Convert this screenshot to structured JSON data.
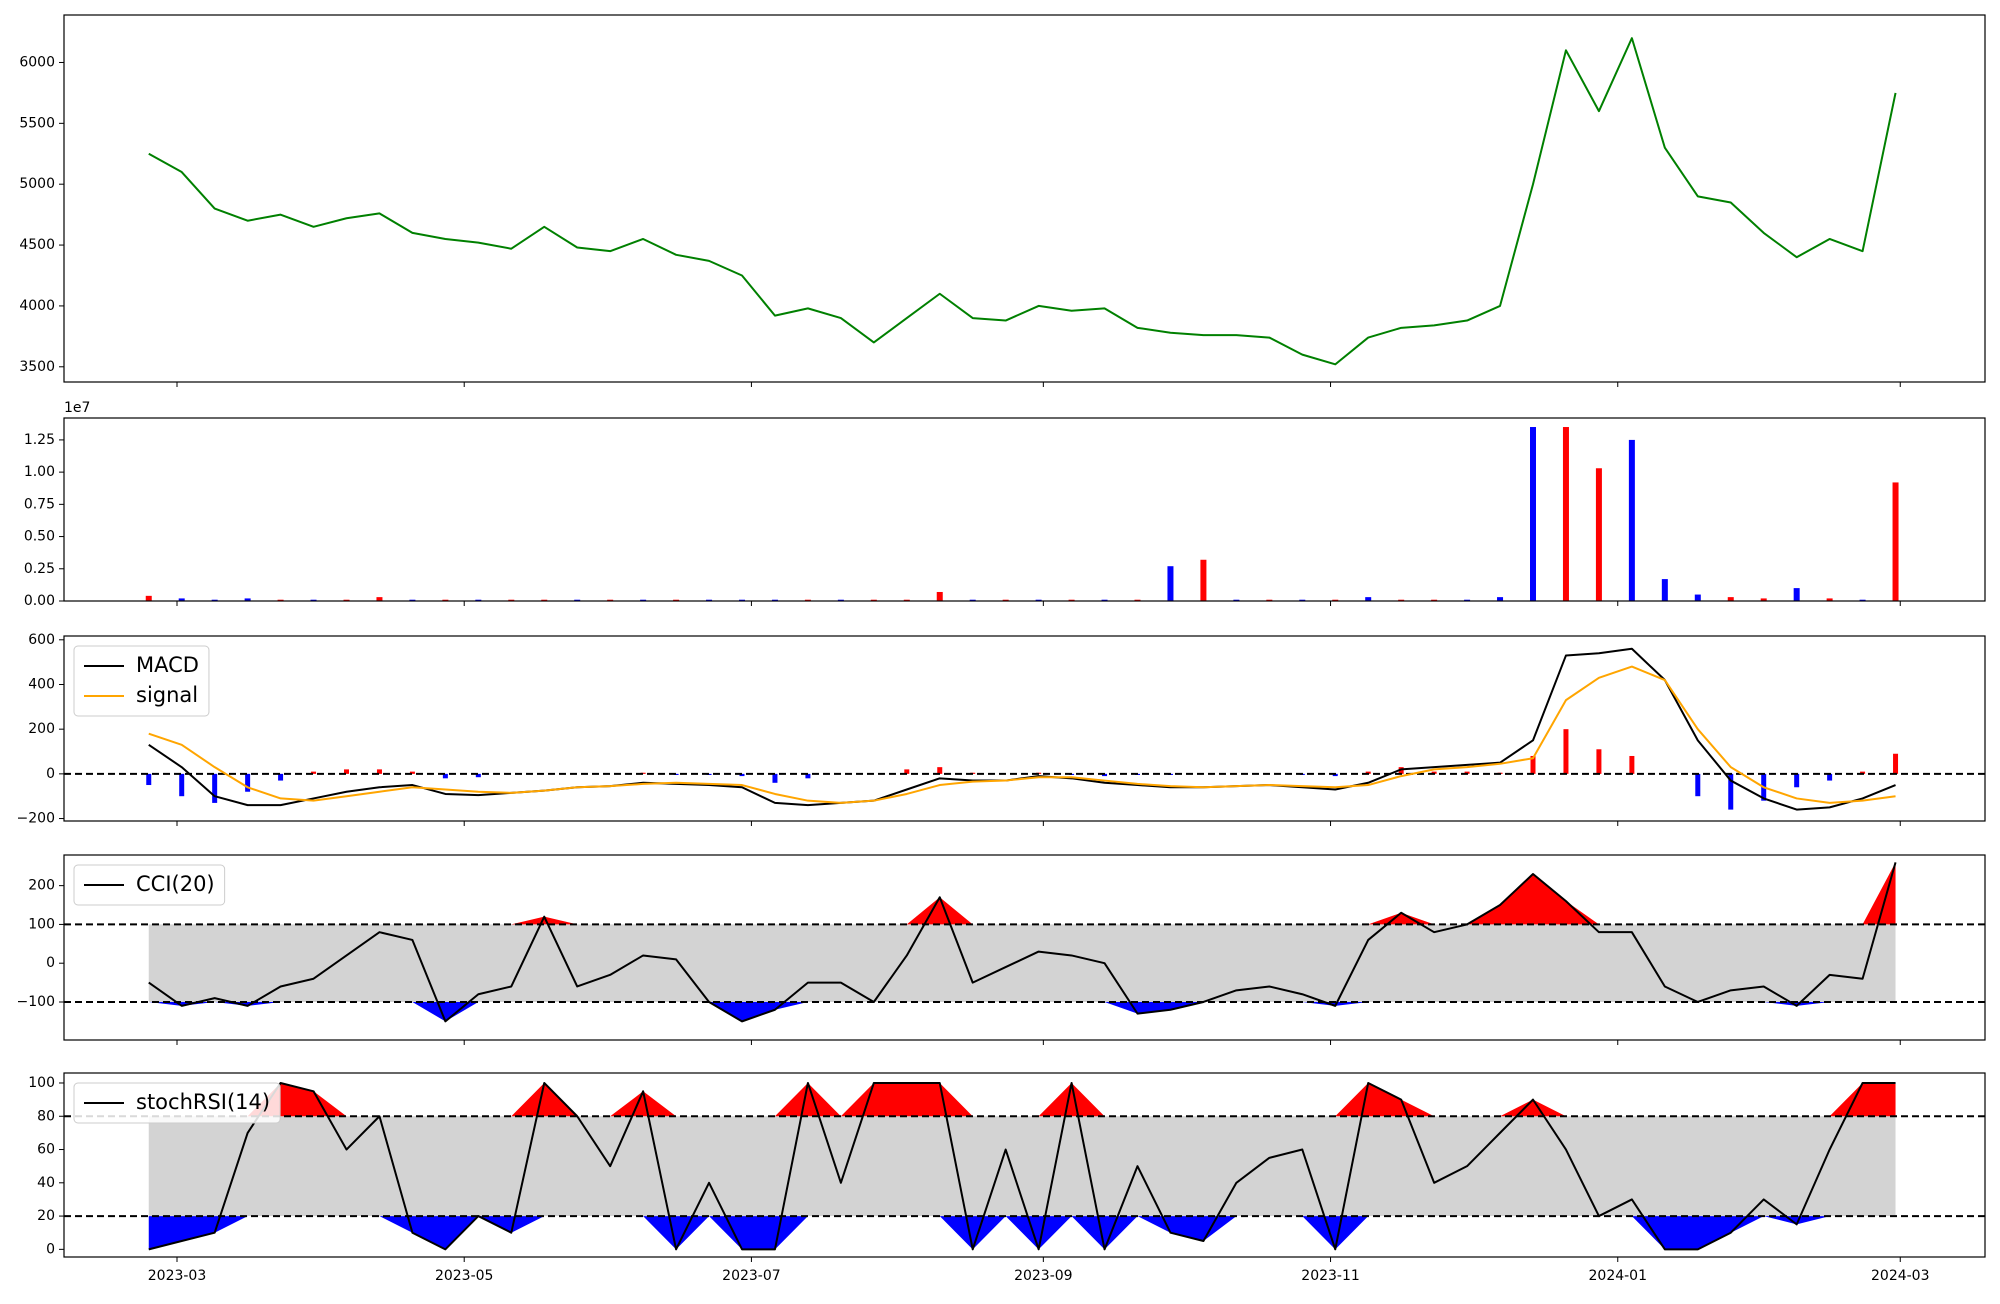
{
  "chart_data": {
    "type": "panels",
    "x": [
      "2023-02-23",
      "2023-03-02",
      "2023-03-09",
      "2023-03-16",
      "2023-03-23",
      "2023-03-30",
      "2023-04-06",
      "2023-04-13",
      "2023-04-20",
      "2023-04-27",
      "2023-05-04",
      "2023-05-11",
      "2023-05-18",
      "2023-05-25",
      "2023-06-01",
      "2023-06-08",
      "2023-06-15",
      "2023-06-22",
      "2023-06-29",
      "2023-07-06",
      "2023-07-13",
      "2023-07-20",
      "2023-07-27",
      "2023-08-03",
      "2023-08-10",
      "2023-08-17",
      "2023-08-24",
      "2023-08-31",
      "2023-09-07",
      "2023-09-14",
      "2023-09-21",
      "2023-09-28",
      "2023-10-05",
      "2023-10-12",
      "2023-10-19",
      "2023-10-26",
      "2023-11-02",
      "2023-11-09",
      "2023-11-16",
      "2023-11-23",
      "2023-11-30",
      "2023-12-07",
      "2023-12-14",
      "2023-12-21",
      "2023-12-28",
      "2024-01-04",
      "2024-01-11",
      "2024-01-18",
      "2024-01-25",
      "2024-02-01",
      "2024-02-08",
      "2024-02-15",
      "2024-02-22",
      "2024-02-29"
    ],
    "xlim": [
      "2023-02-05",
      "2024-03-19"
    ],
    "xticks": [
      {
        "value": "2023-03-01",
        "label": "2023-03"
      },
      {
        "value": "2023-05-01",
        "label": "2023-05"
      },
      {
        "value": "2023-07-01",
        "label": "2023-07"
      },
      {
        "value": "2023-09-01",
        "label": "2023-09"
      },
      {
        "value": "2023-11-01",
        "label": "2023-11"
      },
      {
        "value": "2024-01-01",
        "label": "2024-01"
      },
      {
        "value": "2024-03-01",
        "label": "2024-03"
      }
    ],
    "panels": [
      {
        "type": "line",
        "series": [
          {
            "color": "green",
            "values": [
              5250,
              5100,
              4800,
              4700,
              4750,
              4650,
              4720,
              4760,
              4600,
              4550,
              4520,
              4470,
              4650,
              4480,
              4450,
              4550,
              4420,
              4370,
              4250,
              3920,
              3980,
              3900,
              3700,
              3900,
              4100,
              3900,
              3880,
              4000,
              3960,
              3980,
              3820,
              3780,
              3760,
              3760,
              3740,
              3600,
              3520,
              3740,
              3820,
              3840,
              3880,
              4000,
              5000,
              6100,
              5600,
              6200,
              5300,
              4900,
              4850,
              4600,
              4400,
              4550,
              4450,
              5750
            ]
          }
        ],
        "ylim": [
          3375,
          6390
        ],
        "yticks": [
          3500,
          4000,
          4500,
          5000,
          5500,
          6000
        ]
      },
      {
        "type": "bar",
        "offset_label": "1e7",
        "values": [
          0.04,
          0.02,
          0.01,
          0.02,
          0.01,
          0.01,
          0.01,
          0.03,
          0.01,
          0.01,
          0.01,
          0.01,
          0.01,
          0.01,
          0.01,
          0.01,
          0.01,
          0.01,
          0.01,
          0.01,
          0.01,
          0.01,
          0.01,
          0.01,
          0.07,
          0.01,
          0.01,
          0.01,
          0.01,
          0.01,
          0.01,
          0.27,
          0.32,
          0.01,
          0.01,
          0.01,
          0.01,
          0.03,
          0.01,
          0.01,
          0.01,
          0.03,
          1.35,
          1.35,
          1.03,
          1.25,
          0.17,
          0.05,
          0.03,
          0.02,
          0.1,
          0.02,
          0.01,
          0.92
        ],
        "colors": [
          "red",
          "blue",
          "blue",
          "blue",
          "red",
          "blue",
          "red",
          "red",
          "blue",
          "red",
          "blue",
          "red",
          "red",
          "blue",
          "red",
          "blue",
          "red",
          "blue",
          "blue",
          "blue",
          "red",
          "blue",
          "red",
          "red",
          "red",
          "blue",
          "red",
          "blue",
          "red",
          "blue",
          "red",
          "blue",
          "red",
          "blue",
          "red",
          "blue",
          "red",
          "blue",
          "red",
          "red",
          "blue",
          "blue",
          "blue",
          "red",
          "red",
          "blue",
          "blue",
          "blue",
          "red",
          "red",
          "blue",
          "red",
          "blue",
          "red"
        ],
        "ylim": [
          0,
          1.42
        ],
        "yticks": [
          {
            "value": 0,
            "label": "0.00"
          },
          0.25,
          {
            "value": 0.5,
            "label": "0.50"
          },
          0.75,
          {
            "value": 1,
            "label": "1.00"
          },
          1.25
        ]
      },
      {
        "type": "macd",
        "legend": "upper left",
        "series": [
          {
            "name": "MACD",
            "color": "black",
            "values": [
              130,
              30,
              -100,
              -140,
              -140,
              -110,
              -80,
              -60,
              -50,
              -90,
              -95,
              -85,
              -75,
              -60,
              -55,
              -40,
              -45,
              -50,
              -60,
              -130,
              -140,
              -130,
              -120,
              -70,
              -20,
              -30,
              -30,
              -10,
              -20,
              -40,
              -50,
              -60,
              -60,
              -55,
              -50,
              -60,
              -70,
              -40,
              20,
              30,
              40,
              50,
              150,
              530,
              540,
              560,
              420,
              150,
              -30,
              -110,
              -160,
              -150,
              -110,
              -50
            ]
          },
          {
            "name": "signal",
            "color": "orange",
            "values": [
              180,
              130,
              30,
              -60,
              -110,
              -120,
              -100,
              -80,
              -60,
              -70,
              -80,
              -85,
              -75,
              -60,
              -55,
              -45,
              -40,
              -45,
              -50,
              -90,
              -120,
              -130,
              -120,
              -90,
              -50,
              -35,
              -30,
              -15,
              -15,
              -30,
              -45,
              -55,
              -60,
              -55,
              -50,
              -55,
              -60,
              -50,
              -10,
              20,
              30,
              45,
              70,
              330,
              430,
              480,
              420,
              200,
              30,
              -60,
              -110,
              -130,
              -120,
              -100
            ]
          }
        ],
        "histogram": {
          "values": [
            -50,
            -100,
            -130,
            -80,
            -30,
            10,
            20,
            20,
            10,
            -20,
            -15,
            0,
            0,
            0,
            0,
            5,
            -5,
            -5,
            -10,
            -40,
            -20,
            0,
            0,
            20,
            30,
            5,
            0,
            5,
            -5,
            -10,
            -5,
            -5,
            0,
            0,
            0,
            -5,
            -10,
            10,
            30,
            10,
            10,
            5,
            80,
            200,
            110,
            80,
            0,
            -100,
            -160,
            -120,
            -60,
            -30,
            10,
            90
          ],
          "positive_color": "red",
          "negative_color": "blue"
        },
        "hlines": [
          0
        ],
        "ylim": [
          -211,
          617
        ],
        "yticks": [
          {
            "value": -200,
            "label": "−200"
          },
          0,
          200,
          400,
          600
        ]
      },
      {
        "type": "band",
        "legend": "upper left",
        "series": [
          {
            "name": "CCI(20)",
            "color": "black",
            "values": [
              -50,
              -110,
              -90,
              -110,
              -60,
              -40,
              20,
              80,
              60,
              -150,
              -80,
              -60,
              120,
              -60,
              -30,
              20,
              10,
              -100,
              -150,
              -120,
              -50,
              -50,
              -100,
              20,
              170,
              -50,
              -10,
              30,
              20,
              0,
              -130,
              -120,
              -100,
              -70,
              -60,
              -80,
              -110,
              60,
              130,
              80,
              100,
              150,
              230,
              160,
              80,
              80,
              -60,
              -100,
              -70,
              -60,
              -110,
              -30,
              -40,
              260
            ]
          }
        ],
        "thresholds": [
          -100,
          100
        ],
        "band_color": "lightgray",
        "upper_color": "red",
        "lower_color": "blue",
        "ylim": [
          -198,
          279
        ],
        "yticks": [
          {
            "value": -100,
            "label": "−100"
          },
          0,
          100,
          200
        ]
      },
      {
        "type": "band",
        "legend": "upper left",
        "series": [
          {
            "name": "stochRSI(14)",
            "color": "black",
            "values": [
              0,
              5,
              10,
              70,
              100,
              95,
              60,
              80,
              10,
              0,
              20,
              10,
              100,
              80,
              50,
              95,
              0,
              40,
              0,
              0,
              100,
              40,
              100,
              100,
              100,
              0,
              60,
              0,
              100,
              0,
              50,
              10,
              5,
              40,
              55,
              60,
              0,
              100,
              90,
              40,
              50,
              70,
              90,
              60,
              20,
              30,
              0,
              0,
              10,
              30,
              15,
              60,
              100,
              100
            ]
          }
        ],
        "thresholds": [
          20,
          80
        ],
        "band_color": "lightgray",
        "upper_color": "red",
        "lower_color": "blue",
        "ylim": [
          -4.6,
          106
        ],
        "yticks": [
          0,
          20,
          40,
          60,
          80,
          100
        ]
      }
    ]
  }
}
